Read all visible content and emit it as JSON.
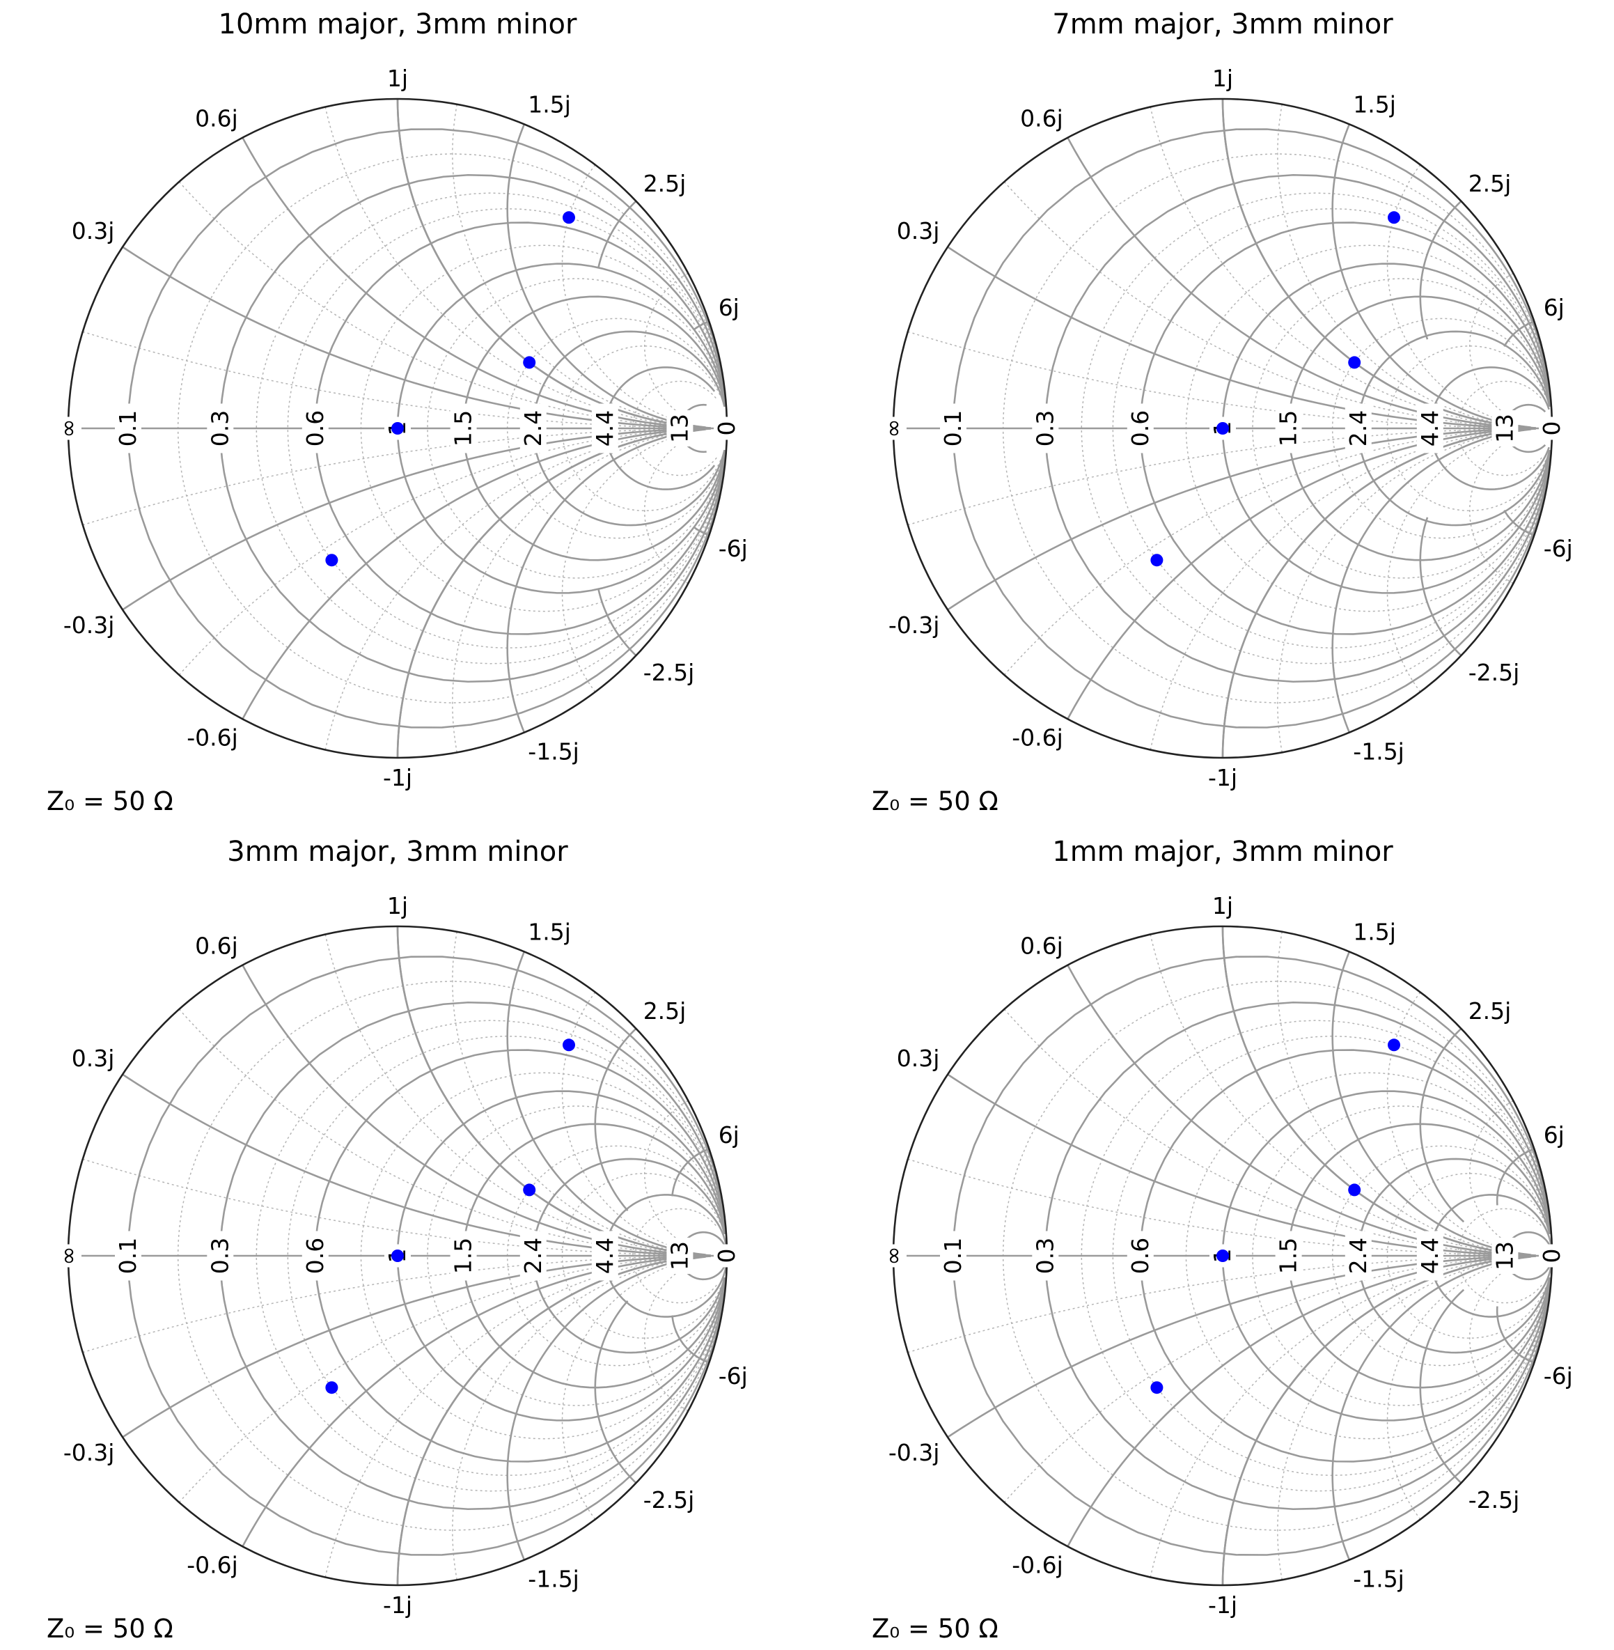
{
  "colors": {
    "points": "#0000ff",
    "major_grid": "#9a9a9a",
    "minor_grid": "#b4b4b4",
    "border": "#222222"
  },
  "chart_data": [
    {
      "type": "scatter",
      "subtype": "smith-chart",
      "title": "10mm major, 3mm minor",
      "annotation": "Z₀ = 50 Ω",
      "real_tick_labels": [
        "∞",
        "13",
        "4.4",
        "2.4",
        "1.5",
        "1",
        "0.6",
        "0.3",
        "0.1",
        "0"
      ],
      "imag_tick_labels": [
        "1j",
        "1.5j",
        "2.5j",
        "6j",
        "0.6j",
        "0.3j",
        "-1j",
        "-1.5j",
        "-2.5j",
        "-6j",
        "-0.6j",
        "-0.3j"
      ],
      "major_spacing": 10,
      "minor_spacing": 3,
      "points": [
        {
          "gamma_re": 0.0,
          "gamma_im": 0.0
        },
        {
          "gamma_re": 0.4,
          "gamma_im": 0.2
        },
        {
          "gamma_re": 0.52,
          "gamma_im": 0.64
        },
        {
          "gamma_re": -0.2,
          "gamma_im": -0.4
        }
      ]
    },
    {
      "type": "scatter",
      "subtype": "smith-chart",
      "title": "7mm major, 3mm minor",
      "annotation": "Z₀ = 50 Ω",
      "real_tick_labels": [
        "∞",
        "13",
        "4.4",
        "2.4",
        "1.5",
        "1",
        "0.6",
        "0.3",
        "0.1",
        "0"
      ],
      "imag_tick_labels": [
        "1j",
        "1.5j",
        "2.5j",
        "6j",
        "0.6j",
        "0.3j",
        "-1j",
        "-1.5j",
        "-2.5j",
        "-6j",
        "-0.6j",
        "-0.3j"
      ],
      "major_spacing": 7,
      "minor_spacing": 3,
      "points": [
        {
          "gamma_re": 0.0,
          "gamma_im": 0.0
        },
        {
          "gamma_re": 0.4,
          "gamma_im": 0.2
        },
        {
          "gamma_re": 0.52,
          "gamma_im": 0.64
        },
        {
          "gamma_re": -0.2,
          "gamma_im": -0.4
        }
      ]
    },
    {
      "type": "scatter",
      "subtype": "smith-chart",
      "title": "3mm major, 3mm minor",
      "annotation": "Z₀ = 50 Ω",
      "real_tick_labels": [
        "∞",
        "13",
        "4.4",
        "2.4",
        "1.5",
        "1",
        "0.6",
        "0.3",
        "0.1",
        "0"
      ],
      "imag_tick_labels": [
        "1j",
        "1.5j",
        "2.5j",
        "6j",
        "0.6j",
        "0.3j",
        "-1j",
        "-1.5j",
        "-2.5j",
        "-6j",
        "-0.6j",
        "-0.3j"
      ],
      "major_spacing": 3,
      "minor_spacing": 3,
      "points": [
        {
          "gamma_re": 0.0,
          "gamma_im": 0.0
        },
        {
          "gamma_re": 0.4,
          "gamma_im": 0.2
        },
        {
          "gamma_re": 0.52,
          "gamma_im": 0.64
        },
        {
          "gamma_re": -0.2,
          "gamma_im": -0.4
        }
      ]
    },
    {
      "type": "scatter",
      "subtype": "smith-chart",
      "title": "1mm major, 3mm minor",
      "annotation": "Z₀ = 50 Ω",
      "real_tick_labels": [
        "∞",
        "13",
        "4.4",
        "2.4",
        "1.5",
        "1",
        "0.6",
        "0.3",
        "0.1",
        "0"
      ],
      "imag_tick_labels": [
        "1j",
        "1.5j",
        "2.5j",
        "6j",
        "0.6j",
        "0.3j",
        "-1j",
        "-1.5j",
        "-2.5j",
        "-6j",
        "-0.6j",
        "-0.3j"
      ],
      "major_spacing": 1,
      "minor_spacing": 3,
      "points": [
        {
          "gamma_re": 0.0,
          "gamma_im": 0.0
        },
        {
          "gamma_re": 0.4,
          "gamma_im": 0.2
        },
        {
          "gamma_re": 0.52,
          "gamma_im": 0.64
        },
        {
          "gamma_re": -0.2,
          "gamma_im": -0.4
        }
      ]
    }
  ]
}
